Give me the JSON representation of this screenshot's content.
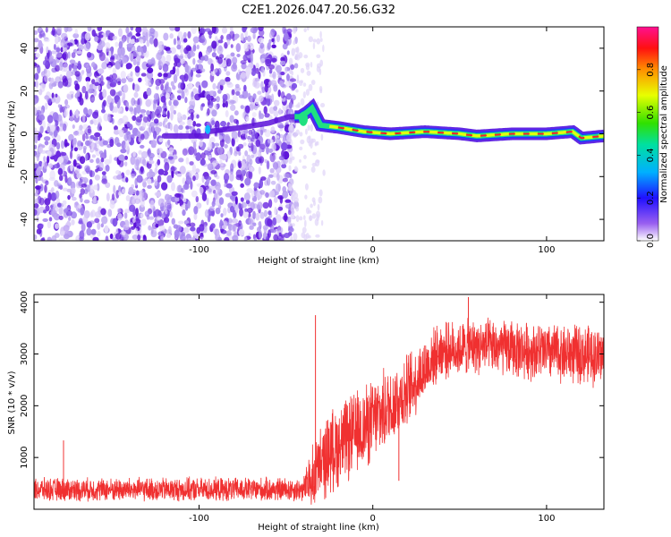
{
  "title": "C2E1.2026.047.20.56.G32",
  "chart_data": [
    {
      "type": "heatmap",
      "xlabel": "Height of straight line (km)",
      "ylabel": "Frequency (Hz)",
      "xlim": [
        -195,
        133
      ],
      "ylim": [
        -50,
        50
      ],
      "x_ticks": [
        -100,
        0,
        100
      ],
      "x_tick_labels": [
        "-100",
        "0",
        "100"
      ],
      "y_ticks": [
        -40,
        -20,
        0,
        20,
        40
      ],
      "y_tick_labels": [
        "-40",
        "-20",
        "0",
        "20",
        "40"
      ],
      "colorbar": {
        "label": "Normalized spectral amplitude",
        "range": [
          0,
          1
        ],
        "ticks": [
          0,
          0.2,
          0.4,
          0.6,
          0.8
        ],
        "tick_labels": [
          "0.0",
          "0.2",
          "0.4",
          "0.6",
          "0.8"
        ],
        "colors": [
          "#ffffff",
          "#6a1fe0",
          "#0000ff",
          "#00c8ff",
          "#00e040",
          "#e8ff00",
          "#ff8800",
          "#ff0000",
          "#ff1090"
        ]
      },
      "noise_region_end_km": -48,
      "transition_km": [
        -48,
        -28
      ],
      "line_track": [
        {
          "x": -95,
          "f": 1
        },
        {
          "x": -75,
          "f": 3
        },
        {
          "x": -60,
          "f": 5
        },
        {
          "x": -48,
          "f": 8
        },
        {
          "x": -42,
          "f": 8
        },
        {
          "x": -38,
          "f": 10
        },
        {
          "x": -35,
          "f": 12
        },
        {
          "x": -30,
          "f": 4
        },
        {
          "x": -20,
          "f": 3
        },
        {
          "x": -5,
          "f": 1
        },
        {
          "x": 10,
          "f": 0
        },
        {
          "x": 30,
          "f": 1
        },
        {
          "x": 50,
          "f": 0
        },
        {
          "x": 60,
          "f": -1
        },
        {
          "x": 80,
          "f": 0
        },
        {
          "x": 100,
          "f": 0
        },
        {
          "x": 115,
          "f": 1
        },
        {
          "x": 120,
          "f": -2
        },
        {
          "x": 133,
          "f": -1
        }
      ]
    },
    {
      "type": "line",
      "xlabel": "Height of straight line (km)",
      "ylabel": "SNR (10 * v/v)",
      "xlim": [
        -195,
        133
      ],
      "ylim": [
        0,
        4150
      ],
      "x_ticks": [
        -100,
        0,
        100
      ],
      "x_tick_labels": [
        "-100",
        "0",
        "100"
      ],
      "y_ticks": [
        1000,
        2000,
        3000,
        4000
      ],
      "y_tick_labels": [
        "1000",
        "2000",
        "3000",
        "4000"
      ],
      "series_color": "#f03030",
      "envelope": [
        {
          "x": -195,
          "mid": 380,
          "amp": 250
        },
        {
          "x": -40,
          "mid": 380,
          "amp": 260
        },
        {
          "x": -35,
          "mid": 600,
          "amp": 700
        },
        {
          "x": -25,
          "mid": 1100,
          "amp": 900
        },
        {
          "x": 0,
          "mid": 1700,
          "amp": 900
        },
        {
          "x": 20,
          "mid": 2300,
          "amp": 800
        },
        {
          "x": 38,
          "mid": 3050,
          "amp": 600
        },
        {
          "x": 60,
          "mid": 3150,
          "amp": 600
        },
        {
          "x": 133,
          "mid": 2950,
          "amp": 650
        }
      ],
      "spikes": [
        {
          "x": -33,
          "y": 3750
        },
        {
          "x": -178,
          "y": 1330
        },
        {
          "x": 55,
          "y": 4100
        },
        {
          "x": 15,
          "y": 550
        }
      ]
    }
  ]
}
